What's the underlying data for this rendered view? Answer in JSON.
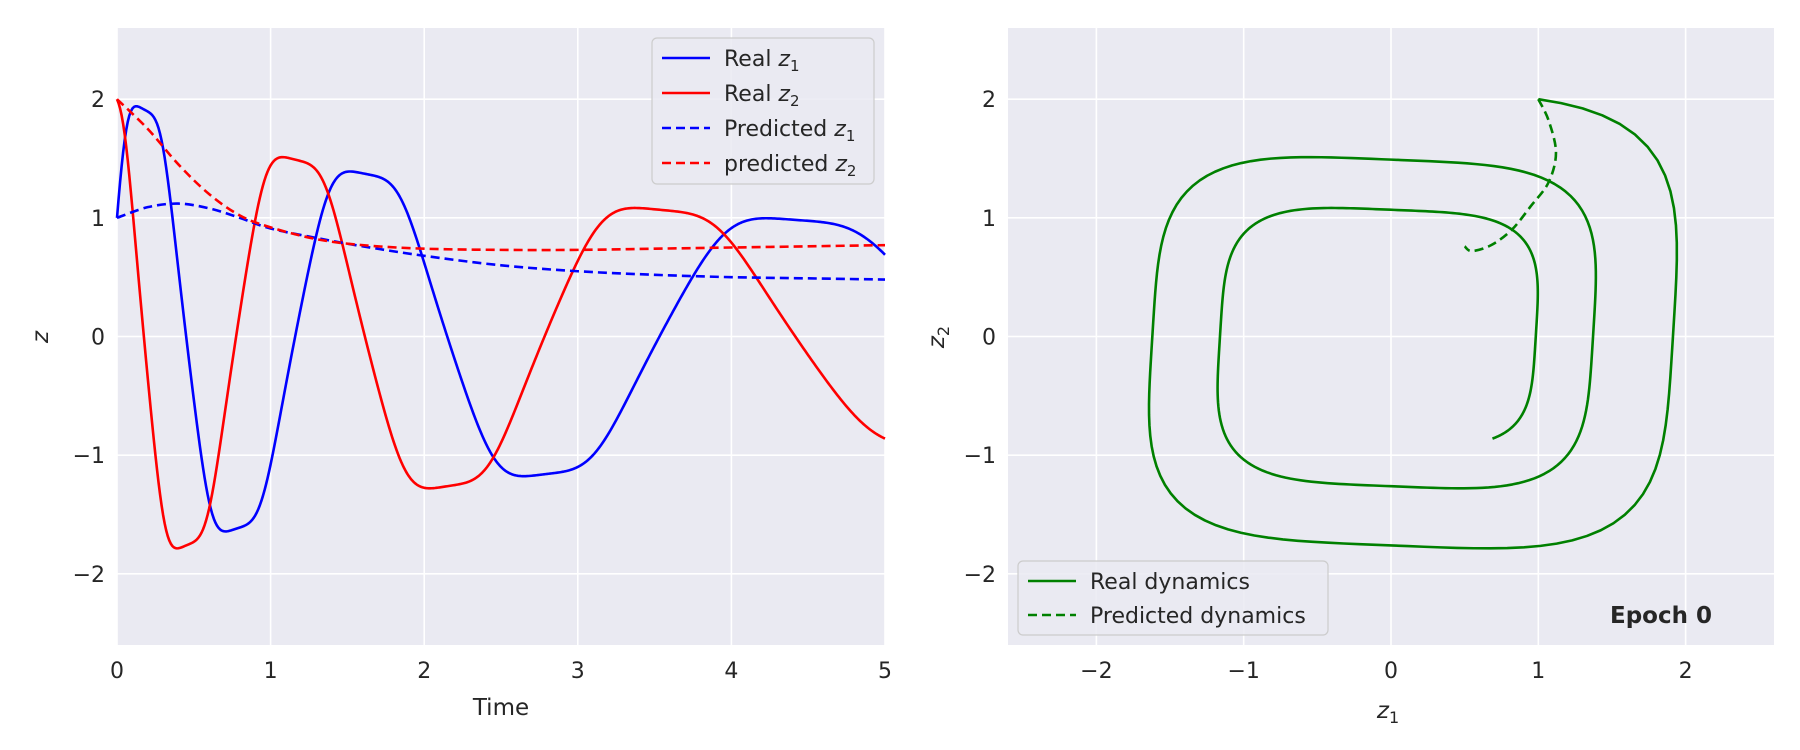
{
  "chart_data": [
    {
      "type": "line",
      "xlabel": "Time",
      "ylabel": "z",
      "xlim": [
        0,
        5
      ],
      "ylim": [
        -2.6,
        2.6
      ],
      "xticks": [
        "0",
        "1",
        "2",
        "3",
        "4",
        "5"
      ],
      "yticks": [
        "−2",
        "−1",
        "0",
        "1",
        "2"
      ],
      "grid": true,
      "legend_position": "top-right",
      "series": [
        {
          "name": "Real",
          "sub": "1",
          "color": "#0000ff",
          "style": "solid",
          "kind": "real",
          "phase": 0
        },
        {
          "name": "Real",
          "sub": "2",
          "color": "#ff0000",
          "style": "solid",
          "kind": "real",
          "phase": 0.2
        },
        {
          "name": "Predicted",
          "sub": "1",
          "color": "#0000ff",
          "style": "dashed",
          "kind": "pred",
          "points": [
            [
              0,
              1.0
            ],
            [
              0.2,
              1.09
            ],
            [
              0.4,
              1.12
            ],
            [
              0.6,
              1.08
            ],
            [
              0.8,
              1.0
            ],
            [
              1.0,
              0.91
            ],
            [
              1.3,
              0.83
            ],
            [
              1.6,
              0.76
            ],
            [
              2.0,
              0.68
            ],
            [
              2.5,
              0.6
            ],
            [
              3.0,
              0.55
            ],
            [
              3.5,
              0.52
            ],
            [
              4.0,
              0.5
            ],
            [
              4.5,
              0.49
            ],
            [
              5.0,
              0.48
            ]
          ]
        },
        {
          "name": "predicted",
          "sub": "2",
          "color": "#ff0000",
          "style": "dashed",
          "kind": "pred",
          "points": [
            [
              0,
              2.0
            ],
            [
              0.2,
              1.75
            ],
            [
              0.4,
              1.45
            ],
            [
              0.6,
              1.2
            ],
            [
              0.8,
              1.02
            ],
            [
              1.0,
              0.92
            ],
            [
              1.3,
              0.82
            ],
            [
              1.6,
              0.77
            ],
            [
              2.0,
              0.74
            ],
            [
              2.5,
              0.73
            ],
            [
              3.0,
              0.73
            ],
            [
              3.5,
              0.74
            ],
            [
              4.0,
              0.75
            ],
            [
              4.5,
              0.76
            ],
            [
              5.0,
              0.77
            ]
          ]
        }
      ]
    },
    {
      "type": "line",
      "xlabel": "z",
      "xlabel_sub": "1",
      "ylabel": "z",
      "ylabel_sub": "2",
      "xlim": [
        -2.6,
        2.6
      ],
      "ylim": [
        -2.6,
        2.6
      ],
      "xticks": [
        "−2",
        "−1",
        "0",
        "1",
        "2"
      ],
      "yticks": [
        "−2",
        "−1",
        "0",
        "1",
        "2"
      ],
      "grid": true,
      "legend_position": "bottom-left",
      "annotation": "Epoch 0",
      "series": [
        {
          "name": "Real dynamics",
          "color": "#008000",
          "style": "solid",
          "kind": "phase"
        },
        {
          "name": "Predicted dynamics",
          "color": "#008000",
          "style": "dashed",
          "kind": "pred",
          "points": [
            [
              1.0,
              2.0
            ],
            [
              1.07,
              1.82
            ],
            [
              1.12,
              1.55
            ],
            [
              1.07,
              1.3
            ],
            [
              0.95,
              1.1
            ],
            [
              0.82,
              0.9
            ],
            [
              0.68,
              0.77
            ],
            [
              0.55,
              0.72
            ],
            [
              0.5,
              0.76
            ]
          ]
        }
      ]
    }
  ]
}
